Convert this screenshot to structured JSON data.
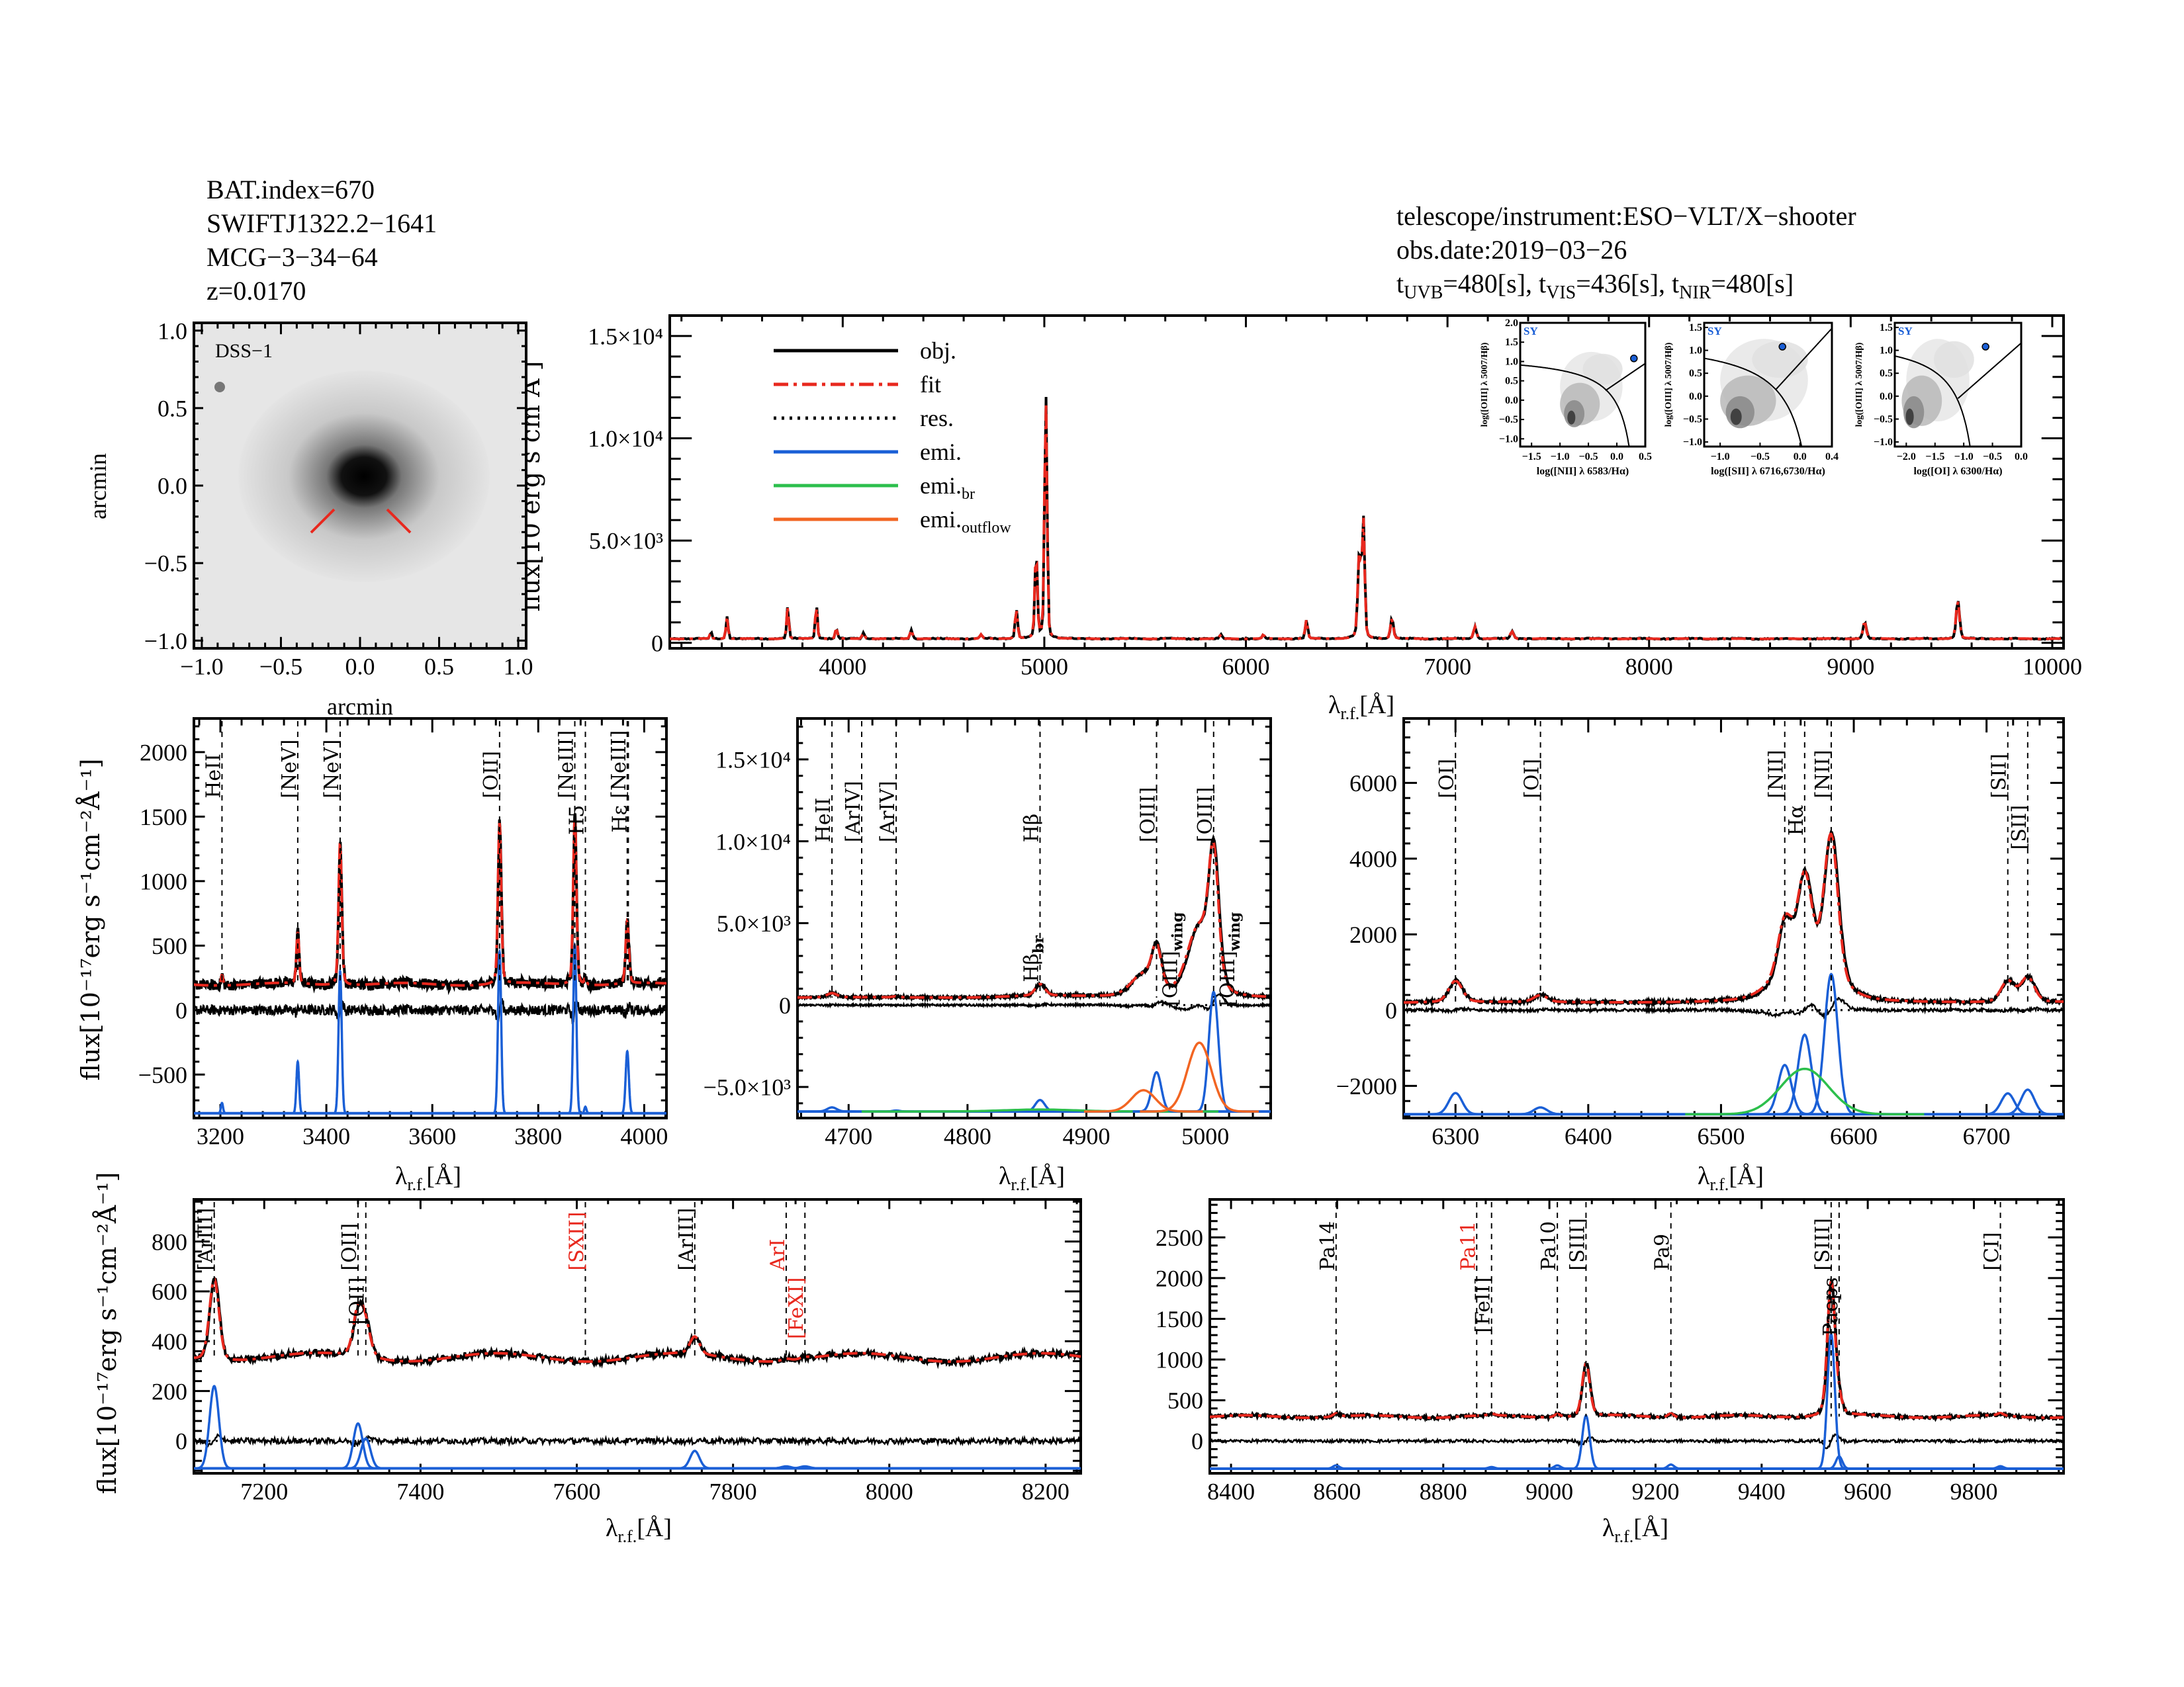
{
  "header": {
    "bat_index": "BAT.index=670",
    "swift_name": "SWIFTJ1322.2−1641",
    "galaxy": "MCG−3−34−64",
    "redshift": "z=0.0170",
    "instrument": "telescope/instrument:ESO−VLT/X−shooter",
    "obs_date": "obs.date:2019−03−26",
    "exposures": [
      {
        "prefix": "t",
        "sub": "UVB",
        "value": "=480[s],"
      },
      {
        "prefix": "t",
        "sub": "VIS",
        "value": "=436[s],"
      },
      {
        "prefix": "t",
        "sub": "NIR",
        "value": "=480[s]"
      }
    ]
  },
  "colors": {
    "obj": "#000000",
    "fit": "#e8281e",
    "res": "#000000",
    "emi": "#1a5fd6",
    "emi_br": "#2cbf4c",
    "emi_outflow": "#f26522",
    "red_label": "#e8281e"
  },
  "image_panel": {
    "label": "DSS−1",
    "xlabel": "arcmin",
    "ylabel": "arcmin",
    "ticks": [
      "−1.0",
      "−0.5",
      "0.0",
      "0.5",
      "1.0"
    ]
  },
  "legend": [
    {
      "label": "obj.",
      "key": "obj",
      "style": "solid"
    },
    {
      "label": "fit",
      "key": "fit",
      "style": "dashdot"
    },
    {
      "label": "res.",
      "key": "res",
      "style": "dotted"
    },
    {
      "label": "emi.",
      "key": "emi",
      "style": "solid"
    },
    {
      "label": "emi.",
      "sub": "br",
      "key": "emi_br",
      "style": "solid"
    },
    {
      "label": "emi.",
      "sub": "outflow",
      "key": "emi_outflow",
      "style": "solid"
    }
  ],
  "bpt": [
    {
      "xlabel": "log([NII] λ 6583/Hα)",
      "ylabel": "log([OIII] λ 5007/Hβ)",
      "class_label": "SY",
      "xlim": [
        -1.7,
        0.5
      ],
      "ylim": [
        -1.2,
        2.0
      ],
      "xticks": [
        "−1.5",
        "−1.0",
        "−0.5",
        "0.0",
        "0.5"
      ],
      "xtick_values": [
        -1.5,
        -1.0,
        -0.5,
        0.0,
        0.5
      ],
      "yticks": [
        "2.0",
        "1.5",
        "1.0",
        "0.5",
        "0.0",
        "−0.5",
        "−1.0"
      ],
      "ytick_values": [
        2.0,
        1.5,
        1.0,
        0.5,
        0.0,
        -0.5,
        -1.0
      ],
      "point": [
        0.3,
        1.08
      ]
    },
    {
      "xlabel": "log([SII] λ 6716,6730/Hα)",
      "ylabel": "log([OIII] λ 5007/Hβ)",
      "class_label": "SY",
      "xlim": [
        -1.2,
        0.4
      ],
      "ylim": [
        -1.1,
        1.6
      ],
      "xticks": [
        "−1.0",
        "−0.5",
        "0.0",
        "0.4"
      ],
      "xtick_values": [
        -1.0,
        -0.5,
        0.0,
        0.4
      ],
      "yticks": [
        "1.5",
        "1.0",
        "0.5",
        "0.0",
        "−0.5",
        "−1.0"
      ],
      "ytick_values": [
        1.5,
        1.0,
        0.5,
        0.0,
        -0.5,
        -1.0
      ],
      "point": [
        -0.22,
        1.08
      ]
    },
    {
      "xlabel": "log([OI] λ 6300/Hα)",
      "ylabel": "log([OIII] λ 5007/Hβ)",
      "class_label": "SY",
      "xlim": [
        -2.2,
        0.0
      ],
      "ylim": [
        -1.1,
        1.6
      ],
      "xticks": [
        "−2.0",
        "−1.5",
        "−1.0",
        "−0.5",
        "0.0"
      ],
      "xtick_values": [
        -2.0,
        -1.5,
        -1.0,
        -0.5,
        0.0
      ],
      "yticks": [
        "1.5",
        "1.0",
        "0.5",
        "0.0",
        "−0.5",
        "−1.0"
      ],
      "ytick_values": [
        1.5,
        1.0,
        0.5,
        0.0,
        -0.5,
        -1.0
      ],
      "point": [
        -0.62,
        1.08
      ]
    }
  ],
  "chart_data": [
    {
      "id": "full",
      "type": "line",
      "xlabel": "λ",
      "xlabel_sub": "r.f.",
      "xlabel_unit": "[Å]",
      "ylabel": "flux[10   erg s   cm   Å  ]",
      "xlim": [
        3142,
        10056
      ],
      "ylim": [
        -270,
        16000
      ],
      "xticks": [
        4000,
        5000,
        6000,
        7000,
        8000,
        9000,
        10000
      ],
      "xtick_labels": [
        "4000",
        "5000",
        "6000",
        "7000",
        "8000",
        "9000",
        "10000"
      ],
      "yticks": [
        0,
        5000,
        10000,
        15000
      ],
      "ytick_labels": [
        "0",
        "5.0×10³",
        "1.0×10⁴",
        "1.5×10⁴"
      ],
      "continuum": 200,
      "peaks": [
        [
          3346,
          350,
          4
        ],
        [
          3426,
          1100,
          5
        ],
        [
          3727,
          1600,
          5
        ],
        [
          3869,
          1700,
          5
        ],
        [
          3968,
          500,
          5
        ],
        [
          4102,
          300,
          6
        ],
        [
          4340,
          450,
          6
        ],
        [
          4686,
          200,
          6
        ],
        [
          4861,
          1400,
          6
        ],
        [
          4959,
          4200,
          6
        ],
        [
          5007,
          12000,
          6
        ],
        [
          5876,
          200,
          6
        ],
        [
          6087,
          200,
          5
        ],
        [
          6300,
          900,
          6
        ],
        [
          6563,
          4200,
          8
        ],
        [
          6583,
          5600,
          6
        ],
        [
          6724,
          1000,
          7
        ],
        [
          7136,
          600,
          7
        ],
        [
          7320,
          350,
          8
        ],
        [
          9069,
          800,
          8
        ],
        [
          9531,
          1900,
          8
        ]
      ],
      "lines": []
    },
    {
      "id": "uv",
      "type": "line",
      "xlabel": "λ",
      "xlabel_sub": "r.f.",
      "xlabel_unit": "[Å]",
      "ylabel": "flux[10⁻¹⁷erg s⁻¹cm⁻²Å⁻¹]",
      "xlim": [
        3150,
        4042
      ],
      "ylim": [
        -837,
        2261
      ],
      "xticks": [
        3200,
        3400,
        3600,
        3800,
        4000
      ],
      "xtick_labels": [
        "3200",
        "3400",
        "3600",
        "3800",
        "4000"
      ],
      "yticks": [
        2000,
        1500,
        1000,
        500,
        0,
        -500
      ],
      "ytick_labels": [
        "2000",
        "1500",
        "1000",
        "500",
        "0",
        "−500"
      ],
      "continuum": 200,
      "emi_baseline": -800,
      "res_noise": 40,
      "components": [
        {
          "wave": 3203,
          "amp": 80,
          "sigma": 2,
          "type": "emi"
        },
        {
          "wave": 3346,
          "amp": 400,
          "sigma": 2.5,
          "type": "emi"
        },
        {
          "wave": 3426,
          "amp": 1100,
          "sigma": 3,
          "type": "emi"
        },
        {
          "wave": 3727,
          "amp": 1250,
          "sigma": 3,
          "type": "emi"
        },
        {
          "wave": 3869,
          "amp": 1300,
          "sigma": 3,
          "type": "emi"
        },
        {
          "wave": 3889,
          "amp": 50,
          "sigma": 2,
          "type": "emi"
        },
        {
          "wave": 3968,
          "amp": 480,
          "sigma": 3,
          "type": "emi"
        }
      ],
      "lines": [
        {
          "label": "HeII",
          "wave": 3203
        },
        {
          "label": "[NeV]",
          "wave": 3346
        },
        {
          "label": "[NeV]",
          "wave": 3426
        },
        {
          "label": "[OII]",
          "wave": 3727
        },
        {
          "label": "[NeIII]",
          "wave": 3869
        },
        {
          "label": "H5",
          "wave": 3889
        },
        {
          "label": "[NeIII]",
          "wave": 3968
        },
        {
          "label": "Hε",
          "wave": 3970
        }
      ]
    },
    {
      "id": "hbeta",
      "type": "line",
      "xlabel": "λ",
      "xlabel_sub": "r.f.",
      "xlabel_unit": "[Å]",
      "xlim": [
        4657,
        5055
      ],
      "ylim": [
        -6900,
        17500
      ],
      "xticks": [
        4700,
        4800,
        4900,
        5000
      ],
      "xtick_labels": [
        "4700",
        "4800",
        "4900",
        "5000"
      ],
      "yticks": [
        15000,
        10000,
        5000,
        0,
        -5000
      ],
      "ytick_labels": [
        "1.5×10⁴",
        "1.0×10⁴",
        "5.0×10³",
        "0",
        "−5.0×10³"
      ],
      "continuum": 450,
      "emi_baseline": -6500,
      "res_noise": 60,
      "components": [
        {
          "wave": 4686,
          "amp": 250,
          "sigma": 4,
          "type": "emi"
        },
        {
          "wave": 4740,
          "amp": 60,
          "sigma": 3,
          "type": "emi"
        },
        {
          "wave": 4861,
          "amp": 700,
          "sigma": 4,
          "type": "emi"
        },
        {
          "wave": 4861,
          "amp": 120,
          "sigma": 30,
          "type": "emi_br"
        },
        {
          "wave": 4959,
          "amp": 2400,
          "sigma": 4,
          "type": "emi"
        },
        {
          "wave": 5007,
          "amp": 7300,
          "sigma": 4,
          "type": "emi"
        },
        {
          "wave": 4948,
          "amp": 1300,
          "sigma": 10,
          "type": "emi_outflow"
        },
        {
          "wave": 4995,
          "amp": 4200,
          "sigma": 10,
          "type": "emi_outflow"
        }
      ],
      "lines": [
        {
          "label": "HeII",
          "wave": 4686
        },
        {
          "label": "[ArIV]",
          "wave": 4711
        },
        {
          "label": "[ArIV]",
          "wave": 4740
        },
        {
          "label": "Hβ",
          "wave": 4861
        },
        {
          "label": "[OIII]",
          "wave": 4959
        },
        {
          "label": "[OIII]",
          "wave": 5007
        }
      ],
      "sub_labels": [
        {
          "label": "Hβ",
          "sub": "br",
          "wave": 4861
        },
        {
          "label": "[OIII]",
          "sub": "wing",
          "wave": 4959
        },
        {
          "label": "[OIII]",
          "sub": "wing",
          "wave": 5007
        }
      ]
    },
    {
      "id": "halpha",
      "type": "line",
      "xlabel": "λ",
      "xlabel_sub": "r.f.",
      "xlabel_unit": "[Å]",
      "xlim": [
        6261,
        6758
      ],
      "ylim": [
        -2850,
        7700
      ],
      "xticks": [
        6300,
        6400,
        6500,
        6600,
        6700
      ],
      "xtick_labels": [
        "6300",
        "6400",
        "6500",
        "6600",
        "6700"
      ],
      "yticks": [
        6000,
        4000,
        2000,
        0,
        -2000
      ],
      "ytick_labels": [
        "6000",
        "4000",
        "2000",
        "0",
        "−2000"
      ],
      "continuum": 200,
      "emi_baseline": -2750,
      "res_noise": 40,
      "components": [
        {
          "wave": 6300,
          "amp": 560,
          "sigma": 5,
          "type": "emi"
        },
        {
          "wave": 6364,
          "amp": 180,
          "sigma": 5,
          "type": "emi"
        },
        {
          "wave": 6548,
          "amp": 1300,
          "sigma": 5,
          "type": "emi"
        },
        {
          "wave": 6563,
          "amp": 2100,
          "sigma": 5,
          "type": "emi"
        },
        {
          "wave": 6583,
          "amp": 3700,
          "sigma": 5,
          "type": "emi"
        },
        {
          "wave": 6563,
          "amp": 1200,
          "sigma": 18,
          "type": "emi_br"
        },
        {
          "wave": 6716,
          "amp": 550,
          "sigma": 5,
          "type": "emi"
        },
        {
          "wave": 6731,
          "amp": 650,
          "sigma": 5,
          "type": "emi"
        }
      ],
      "lines": [
        {
          "label": "[OI]",
          "wave": 6300
        },
        {
          "label": "[OI]",
          "wave": 6364
        },
        {
          "label": "[NII]",
          "wave": 6548
        },
        {
          "label": "Hα",
          "wave": 6563
        },
        {
          "label": "[NII]",
          "wave": 6583
        },
        {
          "label": "[SII]",
          "wave": 6716
        },
        {
          "label": "[SII]",
          "wave": 6731
        }
      ]
    },
    {
      "id": "vis",
      "type": "line",
      "xlabel": "λ",
      "xlabel_sub": "r.f.",
      "xlabel_unit": "[Å]",
      "ylabel": "flux[10⁻¹⁷erg s⁻¹cm⁻²Å⁻¹]",
      "xlim": [
        7110,
        8245
      ],
      "ylim": [
        -130,
        969
      ],
      "xticks": [
        7200,
        7400,
        7600,
        7800,
        8000,
        8200
      ],
      "xtick_labels": [
        "7200",
        "7400",
        "7600",
        "7800",
        "8000",
        "8200"
      ],
      "yticks": [
        800,
        600,
        400,
        200,
        0
      ],
      "ytick_labels": [
        "800",
        "600",
        "400",
        "200",
        "0"
      ],
      "continuum": 335,
      "emi_baseline": -110,
      "res_noise": 12,
      "components": [
        {
          "wave": 7136,
          "amp": 330,
          "sigma": 6,
          "type": "emi"
        },
        {
          "wave": 7320,
          "amp": 180,
          "sigma": 6,
          "type": "emi"
        },
        {
          "wave": 7330,
          "amp": 120,
          "sigma": 6,
          "type": "emi"
        },
        {
          "wave": 7751,
          "amp": 70,
          "sigma": 6,
          "type": "emi"
        },
        {
          "wave": 7868,
          "amp": 8,
          "sigma": 6,
          "type": "emi"
        },
        {
          "wave": 7892,
          "amp": 8,
          "sigma": 6,
          "type": "emi"
        }
      ],
      "lines": [
        {
          "label": "[ArIII]",
          "wave": 7136
        },
        {
          "label": "[OII]",
          "wave": 7320
        },
        {
          "label": "[OII]",
          "wave": 7330
        },
        {
          "label": "[SXII]",
          "wave": 7611,
          "red": true
        },
        {
          "label": "[ArIII]",
          "wave": 7751
        },
        {
          "label": "ArI",
          "wave": 7868,
          "red": true
        },
        {
          "label": "[FeXI]",
          "wave": 7892,
          "red": true
        }
      ]
    },
    {
      "id": "nir",
      "type": "line",
      "xlabel": "λ",
      "xlabel_sub": "r.f.",
      "xlabel_unit": "[Å]",
      "xlim": [
        8360,
        9969
      ],
      "ylim": [
        -397,
        2966
      ],
      "xticks": [
        8400,
        8600,
        8800,
        9000,
        9200,
        9400,
        9600,
        9800
      ],
      "xtick_labels": [
        "8400",
        "8600",
        "8800",
        "9000",
        "9200",
        "9400",
        "9600",
        "9800"
      ],
      "yticks": [
        2500,
        2000,
        1500,
        1000,
        500,
        0
      ],
      "ytick_labels": [
        "2500",
        "2000",
        "1500",
        "1000",
        "500",
        "0"
      ],
      "continuum": 300,
      "emi_baseline": -340,
      "res_noise": 18,
      "components": [
        {
          "wave": 8598,
          "amp": 40,
          "sigma": 6,
          "type": "emi"
        },
        {
          "wave": 8891,
          "amp": 20,
          "sigma": 6,
          "type": "emi"
        },
        {
          "wave": 9015,
          "amp": 40,
          "sigma": 6,
          "type": "emi"
        },
        {
          "wave": 9069,
          "amp": 650,
          "sigma": 7,
          "type": "emi"
        },
        {
          "wave": 9229,
          "amp": 50,
          "sigma": 6,
          "type": "emi"
        },
        {
          "wave": 9531,
          "amp": 1650,
          "sigma": 7,
          "type": "emi"
        },
        {
          "wave": 9546,
          "amp": 150,
          "sigma": 6,
          "type": "emi"
        },
        {
          "wave": 9850,
          "amp": 30,
          "sigma": 6,
          "type": "emi"
        }
      ],
      "lines": [
        {
          "label": "Pa14",
          "wave": 8598
        },
        {
          "label": "Pa11",
          "wave": 8863,
          "red": true
        },
        {
          "label": "[FeII]",
          "wave": 8891
        },
        {
          "label": "Pa10",
          "wave": 9015
        },
        {
          "label": "[SIII]",
          "wave": 9069
        },
        {
          "label": "Pa9",
          "wave": 9229
        },
        {
          "label": "[SIII]",
          "wave": 9531
        },
        {
          "label": "Paeps",
          "wave": 9546
        },
        {
          "label": "[CI]",
          "wave": 9850
        }
      ]
    }
  ]
}
